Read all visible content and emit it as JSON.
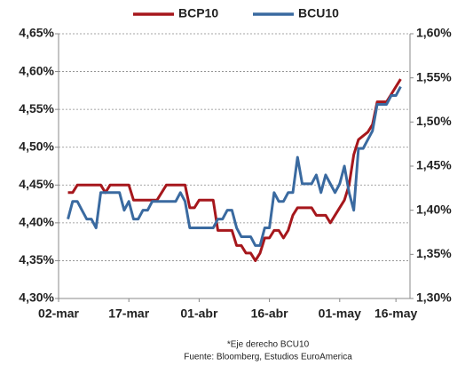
{
  "chart_data": {
    "type": "line",
    "categories": [
      "02-mar",
      null,
      null,
      null,
      null,
      null,
      null,
      null,
      null,
      null,
      null,
      null,
      null,
      null,
      null,
      "17-mar",
      null,
      null,
      null,
      null,
      null,
      null,
      null,
      null,
      null,
      null,
      null,
      null,
      null,
      null,
      "01-abr",
      null,
      null,
      null,
      null,
      null,
      null,
      null,
      null,
      null,
      null,
      null,
      null,
      null,
      null,
      "16-abr",
      null,
      null,
      null,
      null,
      null,
      null,
      null,
      null,
      null,
      null,
      null,
      null,
      null,
      null,
      "01-may",
      null,
      null,
      null,
      null,
      null,
      null,
      null,
      null,
      null,
      null,
      null,
      "16-may",
      null,
      null
    ],
    "series": [
      {
        "name": "BCP10",
        "color": "#a6171c",
        "axis": "y",
        "values": [
          null,
          null,
          4.44,
          4.44,
          4.45,
          4.45,
          4.45,
          4.45,
          4.45,
          4.45,
          4.44,
          4.45,
          4.45,
          4.45,
          4.45,
          4.45,
          4.43,
          4.43,
          4.43,
          4.43,
          4.43,
          4.43,
          4.44,
          4.45,
          4.45,
          4.45,
          4.45,
          4.45,
          4.42,
          4.42,
          4.43,
          4.43,
          4.43,
          4.43,
          4.39,
          4.39,
          4.39,
          4.39,
          4.37,
          4.37,
          4.36,
          4.36,
          4.35,
          4.36,
          4.38,
          4.38,
          4.39,
          4.39,
          4.38,
          4.39,
          4.41,
          4.42,
          4.42,
          4.42,
          4.42,
          4.41,
          4.41,
          4.41,
          4.4,
          4.41,
          4.42,
          4.43,
          4.45,
          4.49,
          4.51,
          4.515,
          4.52,
          4.53,
          4.56,
          4.56,
          4.56,
          4.57,
          4.58,
          4.59,
          null
        ]
      },
      {
        "name": "BCU10",
        "color": "#3a6aa0",
        "axis": "y2",
        "values": [
          null,
          null,
          1.39,
          1.41,
          1.41,
          1.4,
          1.39,
          1.39,
          1.38,
          1.42,
          1.42,
          1.42,
          1.42,
          1.42,
          1.4,
          1.41,
          1.39,
          1.39,
          1.4,
          1.4,
          1.41,
          1.41,
          1.41,
          1.41,
          1.41,
          1.41,
          1.42,
          1.41,
          1.38,
          1.38,
          1.38,
          1.38,
          1.38,
          1.38,
          1.39,
          1.39,
          1.4,
          1.4,
          1.38,
          1.37,
          1.37,
          1.37,
          1.36,
          1.36,
          1.38,
          1.38,
          1.42,
          1.41,
          1.41,
          1.42,
          1.42,
          1.46,
          1.43,
          1.43,
          1.43,
          1.44,
          1.42,
          1.44,
          1.43,
          1.42,
          1.43,
          1.45,
          1.42,
          1.4,
          1.47,
          1.47,
          1.48,
          1.49,
          1.52,
          1.52,
          1.52,
          1.53,
          1.53,
          1.54,
          null
        ]
      }
    ],
    "ylim": [
      4.3,
      4.65
    ],
    "yticks": [
      {
        "value": 4.3,
        "label": "4,30%"
      },
      {
        "value": 4.35,
        "label": "4,35%"
      },
      {
        "value": 4.4,
        "label": "4,40%"
      },
      {
        "value": 4.45,
        "label": "4,45%"
      },
      {
        "value": 4.5,
        "label": "4,50%"
      },
      {
        "value": 4.55,
        "label": "4,55%"
      },
      {
        "value": 4.6,
        "label": "4,60%"
      },
      {
        "value": 4.65,
        "label": "4,65%"
      }
    ],
    "y2lim": [
      1.3,
      1.6
    ],
    "y2ticks": [
      {
        "value": 1.3,
        "label": "1,30%"
      },
      {
        "value": 1.35,
        "label": "1,35%"
      },
      {
        "value": 1.4,
        "label": "1,40%"
      },
      {
        "value": 1.45,
        "label": "1,45%"
      },
      {
        "value": 1.5,
        "label": "1,50%"
      },
      {
        "value": 1.55,
        "label": "1,55%"
      },
      {
        "value": 1.6,
        "label": "1,60%"
      }
    ],
    "grid": true,
    "legend": "top",
    "notes": [
      "*Eje  derecho BCU10",
      "Fuente: Bloomberg, Estudios EuroAmerica"
    ]
  }
}
